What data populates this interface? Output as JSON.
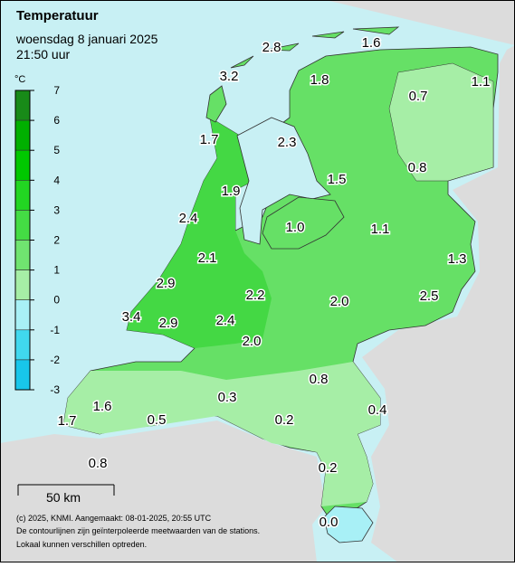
{
  "header": {
    "title": "Temperatuur",
    "date": "woensdag 8 januari 2025",
    "time": "21:50 uur"
  },
  "legend": {
    "unit": "°C",
    "ticks": [
      7,
      6,
      5,
      4,
      3,
      2,
      1,
      0,
      -1,
      -2,
      -3
    ],
    "colors": [
      "#188a18",
      "#00b000",
      "#00c800",
      "#22d622",
      "#44dc44",
      "#70e470",
      "#a6eea6",
      "#a8f0f6",
      "#40d8ee",
      "#18c6ea"
    ]
  },
  "readings": [
    "2.8",
    "1.6",
    "3.2",
    "1.8",
    "0.7",
    "1.1",
    "1.7",
    "2.3",
    "0.8",
    "1.5",
    "1.9",
    "2.4",
    "1.0",
    "1.1",
    "2.1",
    "1.3",
    "2.9",
    "2.2",
    "2.5",
    "2.0",
    "3.4",
    "2.9",
    "2.4",
    "2.0",
    "0.8",
    "0.3",
    "1.6",
    "0.4",
    "1.7",
    "0.5",
    "0.2",
    "0.8",
    "0.2",
    "0.0"
  ],
  "scale_bar": "50 km",
  "footer": [
    "(c) 2025, KNMI. Aangemaakt: 08-01-2025, 20:55 UTC",
    "De contourlijnen zijn geïnterpoleerde meetwaarden van de stations.",
    "Lokaal kunnen verschillen optreden."
  ]
}
